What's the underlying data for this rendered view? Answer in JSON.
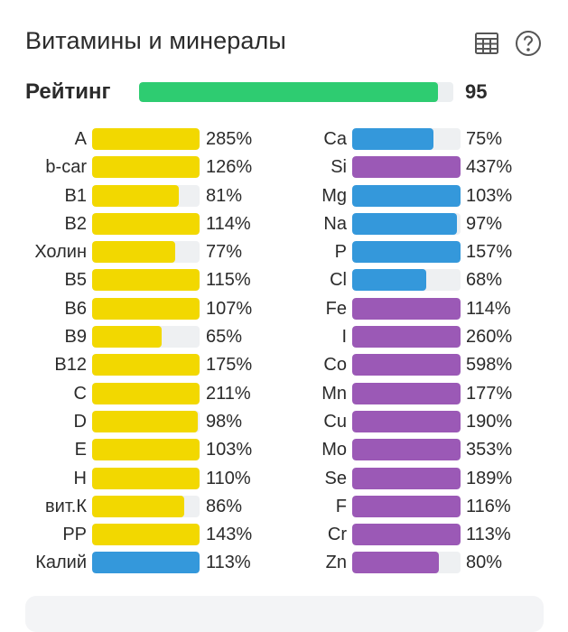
{
  "header": {
    "title": "Витамины и минералы",
    "table_icon": "table-icon",
    "help_icon": "help-circle-icon"
  },
  "rating": {
    "label": "Рейтинг",
    "value": "95",
    "fill_percent": 95,
    "color": "#2ecc71"
  },
  "colors": {
    "yellow": "#f2d800",
    "blue": "#3498db",
    "purple": "#9b59b6"
  },
  "vitamins": [
    {
      "name": "A",
      "pct": "285%",
      "fill": 1.0,
      "color": "yellow"
    },
    {
      "name": "b-car",
      "pct": "126%",
      "fill": 1.0,
      "color": "yellow"
    },
    {
      "name": "B1",
      "pct": "81%",
      "fill": 0.81,
      "color": "yellow"
    },
    {
      "name": "B2",
      "pct": "114%",
      "fill": 1.0,
      "color": "yellow"
    },
    {
      "name": "Холин",
      "pct": "77%",
      "fill": 0.77,
      "color": "yellow"
    },
    {
      "name": "B5",
      "pct": "115%",
      "fill": 1.0,
      "color": "yellow"
    },
    {
      "name": "B6",
      "pct": "107%",
      "fill": 1.0,
      "color": "yellow"
    },
    {
      "name": "B9",
      "pct": "65%",
      "fill": 0.65,
      "color": "yellow"
    },
    {
      "name": "B12",
      "pct": "175%",
      "fill": 1.0,
      "color": "yellow"
    },
    {
      "name": "C",
      "pct": "211%",
      "fill": 1.0,
      "color": "yellow"
    },
    {
      "name": "D",
      "pct": "98%",
      "fill": 0.98,
      "color": "yellow"
    },
    {
      "name": "E",
      "pct": "103%",
      "fill": 1.0,
      "color": "yellow"
    },
    {
      "name": "H",
      "pct": "110%",
      "fill": 1.0,
      "color": "yellow"
    },
    {
      "name": "вит.К",
      "pct": "86%",
      "fill": 0.86,
      "color": "yellow"
    },
    {
      "name": "PP",
      "pct": "143%",
      "fill": 1.0,
      "color": "yellow"
    },
    {
      "name": "Калий",
      "pct": "113%",
      "fill": 1.0,
      "color": "blue"
    }
  ],
  "minerals": [
    {
      "name": "Ca",
      "pct": "75%",
      "fill": 0.75,
      "color": "blue"
    },
    {
      "name": "Si",
      "pct": "437%",
      "fill": 1.0,
      "color": "purple"
    },
    {
      "name": "Mg",
      "pct": "103%",
      "fill": 1.0,
      "color": "blue"
    },
    {
      "name": "Na",
      "pct": "97%",
      "fill": 0.97,
      "color": "blue"
    },
    {
      "name": "P",
      "pct": "157%",
      "fill": 1.0,
      "color": "blue"
    },
    {
      "name": "Cl",
      "pct": "68%",
      "fill": 0.68,
      "color": "blue"
    },
    {
      "name": "Fe",
      "pct": "114%",
      "fill": 1.0,
      "color": "purple"
    },
    {
      "name": "I",
      "pct": "260%",
      "fill": 1.0,
      "color": "purple"
    },
    {
      "name": "Co",
      "pct": "598%",
      "fill": 1.0,
      "color": "purple"
    },
    {
      "name": "Mn",
      "pct": "177%",
      "fill": 1.0,
      "color": "purple"
    },
    {
      "name": "Cu",
      "pct": "190%",
      "fill": 1.0,
      "color": "purple"
    },
    {
      "name": "Mo",
      "pct": "353%",
      "fill": 1.0,
      "color": "purple"
    },
    {
      "name": "Se",
      "pct": "189%",
      "fill": 1.0,
      "color": "purple"
    },
    {
      "name": "F",
      "pct": "116%",
      "fill": 1.0,
      "color": "purple"
    },
    {
      "name": "Cr",
      "pct": "113%",
      "fill": 1.0,
      "color": "purple"
    },
    {
      "name": "Zn",
      "pct": "80%",
      "fill": 0.8,
      "color": "purple"
    }
  ]
}
